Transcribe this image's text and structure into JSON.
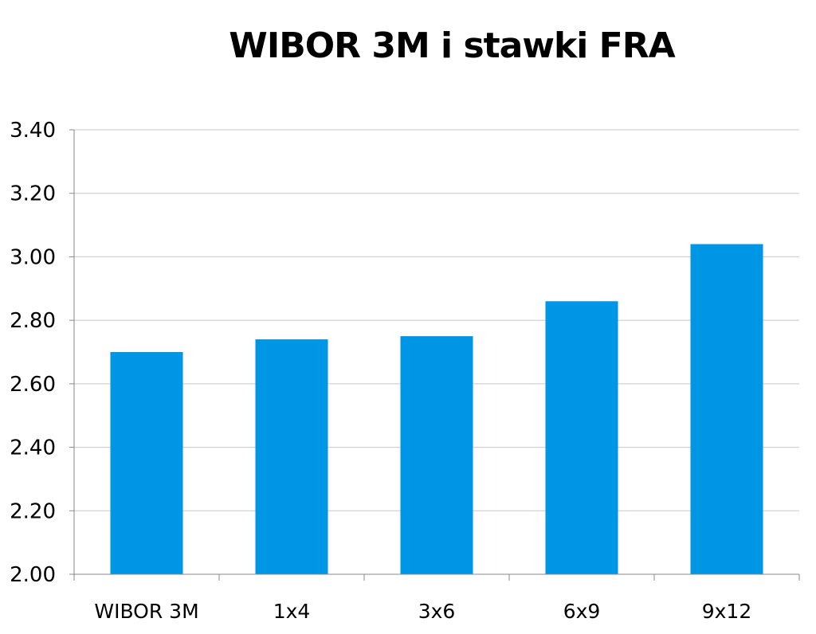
{
  "chart_data": {
    "type": "bar",
    "title": "WIBOR 3M i stawki FRA",
    "xlabel": "",
    "ylabel": "",
    "categories": [
      "WIBOR 3M",
      "1x4",
      "3x6",
      "6x9",
      "9x12"
    ],
    "values": [
      2.7,
      2.74,
      2.75,
      2.86,
      3.04
    ],
    "ylim": [
      2.0,
      3.4
    ],
    "yticks": [
      "2.00",
      "2.20",
      "2.40",
      "2.60",
      "2.80",
      "3.00",
      "3.20",
      "3.40"
    ],
    "grid": true,
    "legend": "none",
    "bar_color": "#0096e6"
  }
}
